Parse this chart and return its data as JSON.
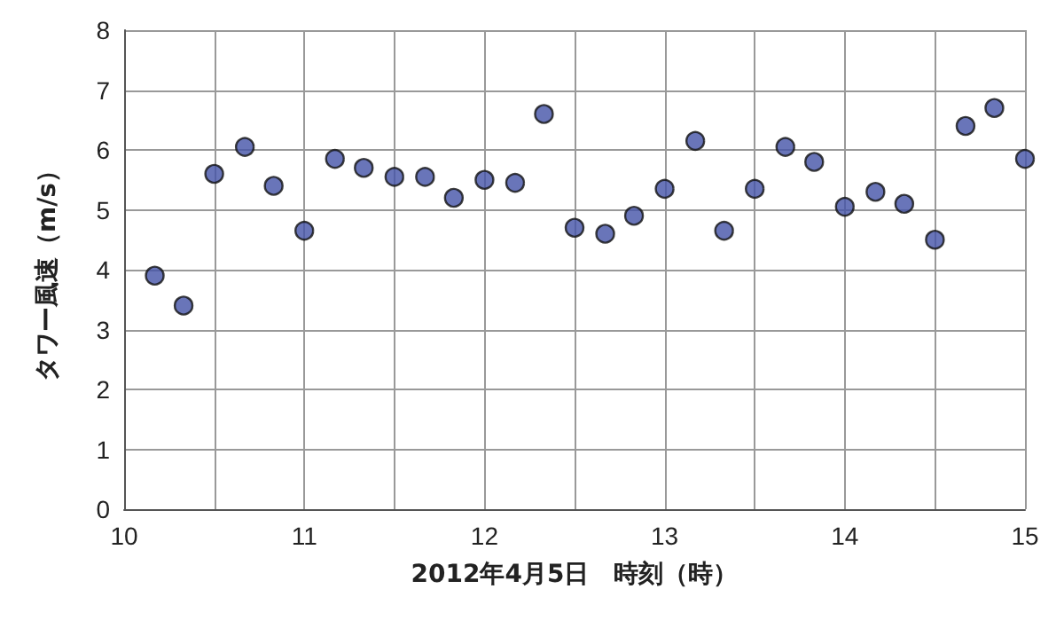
{
  "chart_data": {
    "type": "scatter",
    "xlabel": "2012年4月5日　時刻（時）",
    "ylabel": "タワー風速（m/s）",
    "x": [
      10.17,
      10.33,
      10.5,
      10.67,
      10.83,
      11,
      11.17,
      11.33,
      11.5,
      11.67,
      11.83,
      12,
      12.17,
      12.33,
      12.5,
      12.67,
      12.83,
      13,
      13.17,
      13.33,
      13.5,
      13.67,
      13.83,
      14,
      14.17,
      14.33,
      14.5,
      14.67,
      14.83,
      15
    ],
    "series": [
      {
        "color": "#4453a8",
        "values": [
          3.9,
          3.4,
          5.6,
          6.05,
          5.4,
          4.65,
          5.85,
          5.7,
          5.55,
          5.55,
          5.2,
          5.5,
          5.45,
          6.6,
          4.7,
          4.6,
          4.9,
          5.35,
          6.15,
          4.65,
          5.35,
          6.05,
          5.8,
          5.05,
          5.3,
          5.1,
          4.5,
          6.4,
          6.7,
          5.85
        ]
      }
    ],
    "xlim": [
      10,
      15
    ],
    "xticks": [
      10,
      {
        "value": 10.5,
        "label": null
      },
      11,
      {
        "value": 11.5,
        "label": null
      },
      12,
      {
        "value": 12.5,
        "label": null
      },
      13,
      {
        "value": 13.5,
        "label": null
      },
      14,
      {
        "value": 14.5,
        "label": null
      },
      15
    ],
    "ylim": [
      0,
      8
    ],
    "yticks": [
      0,
      1,
      2,
      3,
      4,
      5,
      6,
      7,
      8
    ],
    "grid": true,
    "marker": "circle"
  }
}
